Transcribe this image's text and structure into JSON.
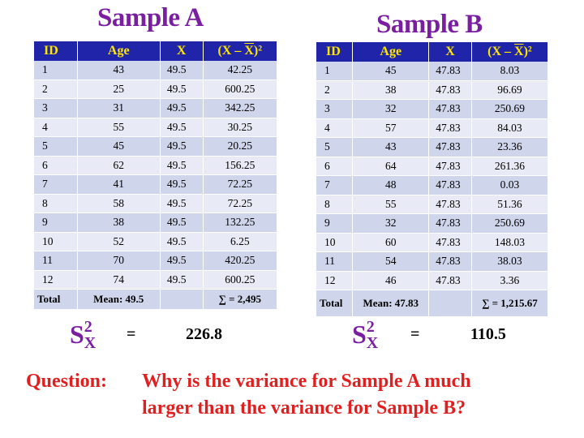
{
  "sample_a": {
    "title": "Sample A",
    "headers": [
      "ID",
      "Age",
      "X",
      "(X – X)²"
    ],
    "rows": [
      [
        "1",
        "43",
        "49.5",
        "42.25"
      ],
      [
        "2",
        "25",
        "49.5",
        "600.25"
      ],
      [
        "3",
        "31",
        "49.5",
        "342.25"
      ],
      [
        "4",
        "55",
        "49.5",
        "30.25"
      ],
      [
        "5",
        "45",
        "49.5",
        "20.25"
      ],
      [
        "6",
        "62",
        "49.5",
        "156.25"
      ],
      [
        "7",
        "41",
        "49.5",
        "72.25"
      ],
      [
        "8",
        "58",
        "49.5",
        "72.25"
      ],
      [
        "9",
        "38",
        "49.5",
        "132.25"
      ],
      [
        "10",
        "52",
        "49.5",
        "6.25"
      ],
      [
        "11",
        "70",
        "49.5",
        "420.25"
      ],
      [
        "12",
        "74",
        "49.5",
        "600.25"
      ]
    ],
    "total": {
      "label": "Total",
      "mean": "Mean: 49.5",
      "sum": "∑  = 2,495"
    },
    "variance": {
      "symbol": "S",
      "sup": "2",
      "sub": "X",
      "equals": "=",
      "value": "226.8"
    }
  },
  "sample_b": {
    "title": "Sample B",
    "headers": [
      "ID",
      "Age",
      "X",
      "(X – X)²"
    ],
    "rows": [
      [
        "1",
        "45",
        "47.83",
        "8.03"
      ],
      [
        "2",
        "38",
        "47.83",
        "96.69"
      ],
      [
        "3",
        "32",
        "47.83",
        "250.69"
      ],
      [
        "4",
        "57",
        "47.83",
        "84.03"
      ],
      [
        "5",
        "43",
        "47.83",
        "23.36"
      ],
      [
        "6",
        "64",
        "47.83",
        "261.36"
      ],
      [
        "7",
        "48",
        "47.83",
        "0.03"
      ],
      [
        "8",
        "55",
        "47.83",
        "51.36"
      ],
      [
        "9",
        "32",
        "47.83",
        "250.69"
      ],
      [
        "10",
        "60",
        "47.83",
        "148.03"
      ],
      [
        "11",
        "54",
        "47.83",
        "38.03"
      ],
      [
        "12",
        "46",
        "47.83",
        "3.36"
      ]
    ],
    "total": {
      "label": "Total",
      "mean": "Mean: 47.83",
      "sum": "∑  = 1,215.67"
    },
    "variance": {
      "symbol": "S",
      "sup": "2",
      "sub": "X",
      "equals": "=",
      "value": "110.5"
    }
  },
  "question": {
    "label": "Question:",
    "line1": "Why is the variance for Sample A much",
    "line2": "larger than the variance for Sample B?"
  },
  "colors": {
    "header_bg": "#1f24a8",
    "header_text": "#ffe600",
    "title": "#7b1fa2",
    "question": "#e02020"
  }
}
